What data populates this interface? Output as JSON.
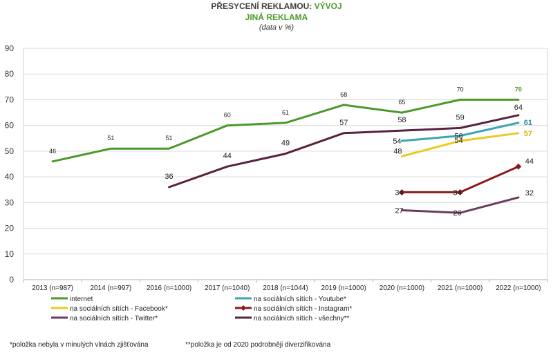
{
  "title": {
    "line1_prefix": "PŘESYCENÍ REKLAMOU: ",
    "line1_accent": "VÝVOJ",
    "line2": "JINÁ REKLAMA",
    "line3": "(data v %)"
  },
  "footnotes": {
    "left": "*položka nebyla v minulých vlnách zjišťována",
    "right": "**položka je od 2020 podrobněji diverzifikována"
  },
  "chart_data": {
    "type": "line",
    "categories": [
      "2013 (n=987)",
      "2014 (n=997)",
      "2016 (n=1000)",
      "2017 (n=1040)",
      "2018 (n=1044)",
      "2019 (n=1000)",
      "2020 (n=1000)",
      "2021 (n=1000)",
      "2022 (n=1000)"
    ],
    "ylim": [
      0,
      90
    ],
    "yticks": [
      0,
      10,
      20,
      30,
      40,
      50,
      60,
      70,
      80,
      90
    ],
    "grid": true,
    "legend_position": "bottom",
    "series": [
      {
        "name": "internet",
        "color": "#4a9a2a",
        "marker": "none",
        "values": [
          46,
          51,
          51,
          60,
          61,
          68,
          65,
          70,
          70
        ],
        "labels": [
          "46",
          "51",
          "51",
          "60",
          "61",
          "68",
          "65",
          "70",
          "70"
        ]
      },
      {
        "name": "na sociálních sítích - Youtube*",
        "color": "#3aa6b0",
        "marker": "none",
        "values": [
          null,
          null,
          null,
          null,
          null,
          null,
          54,
          56,
          61
        ],
        "labels": [
          null,
          null,
          null,
          null,
          null,
          null,
          "54",
          "56",
          "61"
        ]
      },
      {
        "name": "na sociálních sítích - Facebook*",
        "color": "#e8cc1a",
        "marker": "none",
        "values": [
          null,
          null,
          null,
          null,
          null,
          null,
          48,
          54,
          57
        ],
        "labels": [
          null,
          null,
          null,
          null,
          null,
          null,
          "48",
          "54",
          "57"
        ]
      },
      {
        "name": "na sociálních sítích - Instagram*",
        "color": "#8b1a1a",
        "marker": "diamond",
        "values": [
          null,
          null,
          null,
          null,
          null,
          null,
          34,
          34,
          44
        ],
        "labels": [
          null,
          null,
          null,
          null,
          null,
          null,
          "34",
          "34",
          "44"
        ]
      },
      {
        "name": "na sociálních sítích - Twitter*",
        "color": "#6e3a5a",
        "marker": "none",
        "values": [
          null,
          null,
          null,
          null,
          null,
          null,
          27,
          26,
          32
        ],
        "labels": [
          null,
          null,
          null,
          null,
          null,
          null,
          "27",
          "26",
          "32"
        ]
      },
      {
        "name": "na sociálních sítích - všechny**",
        "color": "#5a2040",
        "marker": "none",
        "values": [
          null,
          null,
          36,
          44,
          49,
          57,
          58,
          59,
          64
        ],
        "labels": [
          null,
          null,
          "36",
          "44",
          "49",
          "57",
          "58",
          "59",
          "64"
        ]
      }
    ]
  }
}
